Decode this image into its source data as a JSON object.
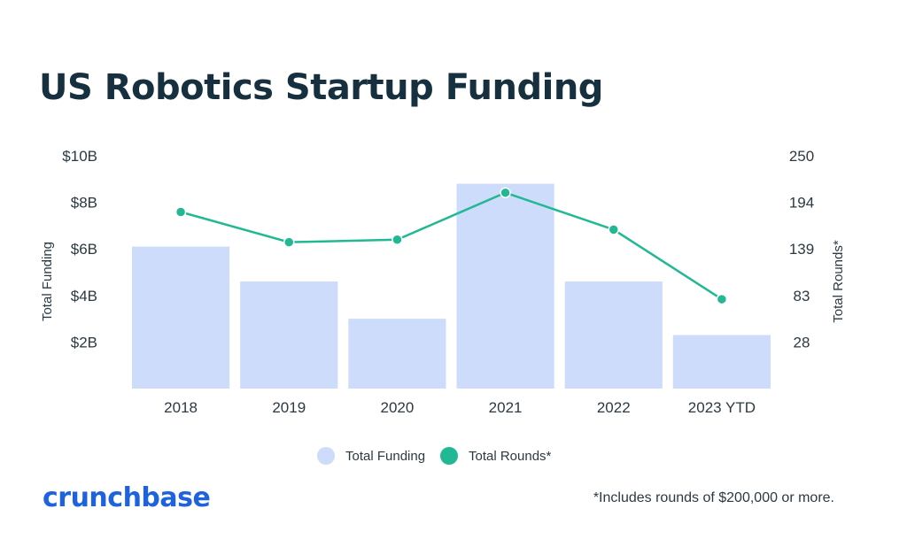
{
  "title": "US Robotics Startup Funding",
  "footnote": "*Includes rounds of $200,000 or more.",
  "logo_text": "crunchbase",
  "colors": {
    "bar": "#ccdcfa",
    "line": "#23b894",
    "text": "#2b3942",
    "title": "#17303f",
    "logo": "#1f62e0"
  },
  "chart_data": {
    "type": "bar",
    "categories": [
      "2018",
      "2019",
      "2020",
      "2021",
      "2022",
      "2023 YTD"
    ],
    "series": [
      {
        "name": "Total Funding",
        "type": "bar",
        "axis": "left",
        "unit": "USD billions",
        "values": [
          6.1,
          4.6,
          3.0,
          8.8,
          4.6,
          2.3
        ]
      },
      {
        "name": "Total Rounds*",
        "type": "line",
        "axis": "right",
        "values": [
          183,
          147,
          150,
          206,
          162,
          79
        ]
      }
    ],
    "ylabel": "Total Funding",
    "y2label": "Total Rounds*",
    "ylim": [
      0,
      10
    ],
    "y_ticks": [
      {
        "value": 2,
        "label": "$2B"
      },
      {
        "value": 4,
        "label": "$4B"
      },
      {
        "value": 6,
        "label": "$6B"
      },
      {
        "value": 8,
        "label": "$8B"
      },
      {
        "value": 10,
        "label": "$10B"
      }
    ],
    "y2_ticks": [
      "28",
      "83",
      "139",
      "194",
      "250"
    ],
    "legend": {
      "position": "bottom",
      "entries": [
        "Total Funding",
        "Total Rounds*"
      ]
    },
    "grid": false
  }
}
